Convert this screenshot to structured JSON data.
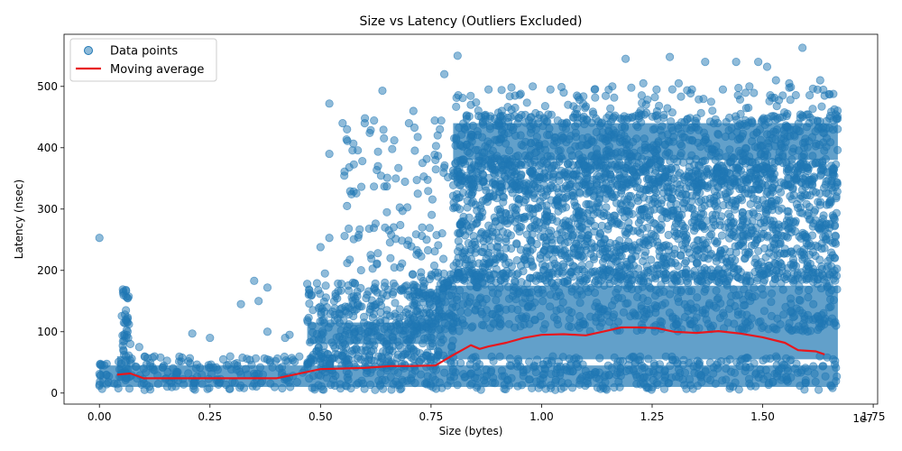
{
  "chart_data": {
    "type": "scatter",
    "title": "Size vs Latency (Outliers Excluded)",
    "xlabel": "Size (bytes)",
    "ylabel": "Latency (nsec)",
    "x_offset_label": "1e7",
    "xlim": [
      -0.08,
      1.76
    ],
    "ylim": [
      -18,
      585
    ],
    "x_scale_factor": 10000000,
    "x_tick_values": [
      0.0,
      0.25,
      0.5,
      0.75,
      1.0,
      1.25,
      1.5,
      1.75
    ],
    "x_tick_labels": [
      "0.00",
      "0.25",
      "0.50",
      "0.75",
      "1.00",
      "1.25",
      "1.50",
      "1.75"
    ],
    "y_tick_values": [
      0,
      100,
      200,
      300,
      400,
      500
    ],
    "y_tick_labels": [
      "0",
      "100",
      "200",
      "300",
      "400",
      "500"
    ],
    "grid": false,
    "legend": {
      "placement": "top-left",
      "entries": [
        "Data points",
        "Moving average"
      ]
    },
    "colors": {
      "points": "#1f77b4",
      "average": "#e8171d"
    },
    "series": [
      {
        "name": "Data points",
        "kind": "scatter",
        "points": [
          [
            0.0,
            253
          ],
          [
            0.0,
            12
          ],
          [
            0.02,
            18
          ],
          [
            0.05,
            30
          ],
          [
            0.06,
            60
          ],
          [
            0.07,
            80
          ],
          [
            0.06,
            168
          ],
          [
            0.06,
            135
          ],
          [
            0.06,
            120
          ],
          [
            0.065,
            90
          ],
          [
            0.09,
            75
          ],
          [
            0.1,
            40
          ],
          [
            0.21,
            97
          ],
          [
            0.25,
            90
          ],
          [
            0.28,
            55
          ],
          [
            0.32,
            145
          ],
          [
            0.35,
            183
          ],
          [
            0.36,
            150
          ],
          [
            0.38,
            172
          ],
          [
            0.38,
            100
          ],
          [
            0.42,
            90
          ],
          [
            0.43,
            95
          ],
          [
            0.47,
            178
          ],
          [
            0.48,
            160
          ],
          [
            0.5,
            238
          ],
          [
            0.51,
            195
          ],
          [
            0.52,
            253
          ],
          [
            0.52,
            472
          ],
          [
            0.52,
            390
          ],
          [
            0.55,
            440
          ],
          [
            0.56,
            430
          ],
          [
            0.56,
            305
          ],
          [
            0.6,
            440
          ],
          [
            0.61,
            268
          ],
          [
            0.63,
            370
          ],
          [
            0.64,
            493
          ],
          [
            0.65,
            337
          ],
          [
            0.66,
            258
          ],
          [
            0.68,
            205
          ],
          [
            0.7,
            440
          ],
          [
            0.71,
            460
          ],
          [
            0.72,
            325
          ],
          [
            0.73,
            270
          ],
          [
            0.74,
            250
          ],
          [
            0.76,
            380
          ],
          [
            0.77,
            430
          ],
          [
            0.78,
            520
          ],
          [
            0.81,
            550
          ],
          [
            0.84,
            470
          ],
          [
            0.88,
            495
          ],
          [
            0.91,
            460
          ],
          [
            0.94,
            485
          ],
          [
            0.98,
            500
          ],
          [
            1.02,
            495
          ],
          [
            1.05,
            490
          ],
          [
            1.08,
            485
          ],
          [
            1.12,
            495
          ],
          [
            1.16,
            500
          ],
          [
            1.19,
            545
          ],
          [
            1.23,
            505
          ],
          [
            1.26,
            495
          ],
          [
            1.29,
            548
          ],
          [
            1.31,
            505
          ],
          [
            1.34,
            495
          ],
          [
            1.37,
            540
          ],
          [
            1.41,
            495
          ],
          [
            1.44,
            540
          ],
          [
            1.47,
            500
          ],
          [
            1.49,
            540
          ],
          [
            1.51,
            532
          ],
          [
            1.53,
            510
          ],
          [
            1.56,
            505
          ],
          [
            1.59,
            563
          ],
          [
            1.63,
            510
          ],
          [
            1.64,
            485
          ],
          [
            1.66,
            445
          ]
        ]
      },
      {
        "name": "Moving average",
        "kind": "line",
        "x": [
          0.04,
          0.07,
          0.1,
          0.15,
          0.2,
          0.3,
          0.4,
          0.42,
          0.5,
          0.6,
          0.66,
          0.7,
          0.76,
          0.8,
          0.84,
          0.86,
          0.88,
          0.92,
          0.96,
          1.0,
          1.05,
          1.1,
          1.15,
          1.18,
          1.22,
          1.26,
          1.3,
          1.35,
          1.4,
          1.45,
          1.5,
          1.55,
          1.58,
          1.62,
          1.64
        ],
        "y": [
          30,
          32,
          24,
          24,
          24,
          24,
          24,
          27,
          39,
          41,
          44,
          44,
          45,
          62,
          78,
          72,
          76,
          82,
          90,
          95,
          96,
          94,
          102,
          107,
          107,
          106,
          100,
          98,
          101,
          97,
          91,
          82,
          70,
          68,
          63
        ]
      }
    ]
  }
}
